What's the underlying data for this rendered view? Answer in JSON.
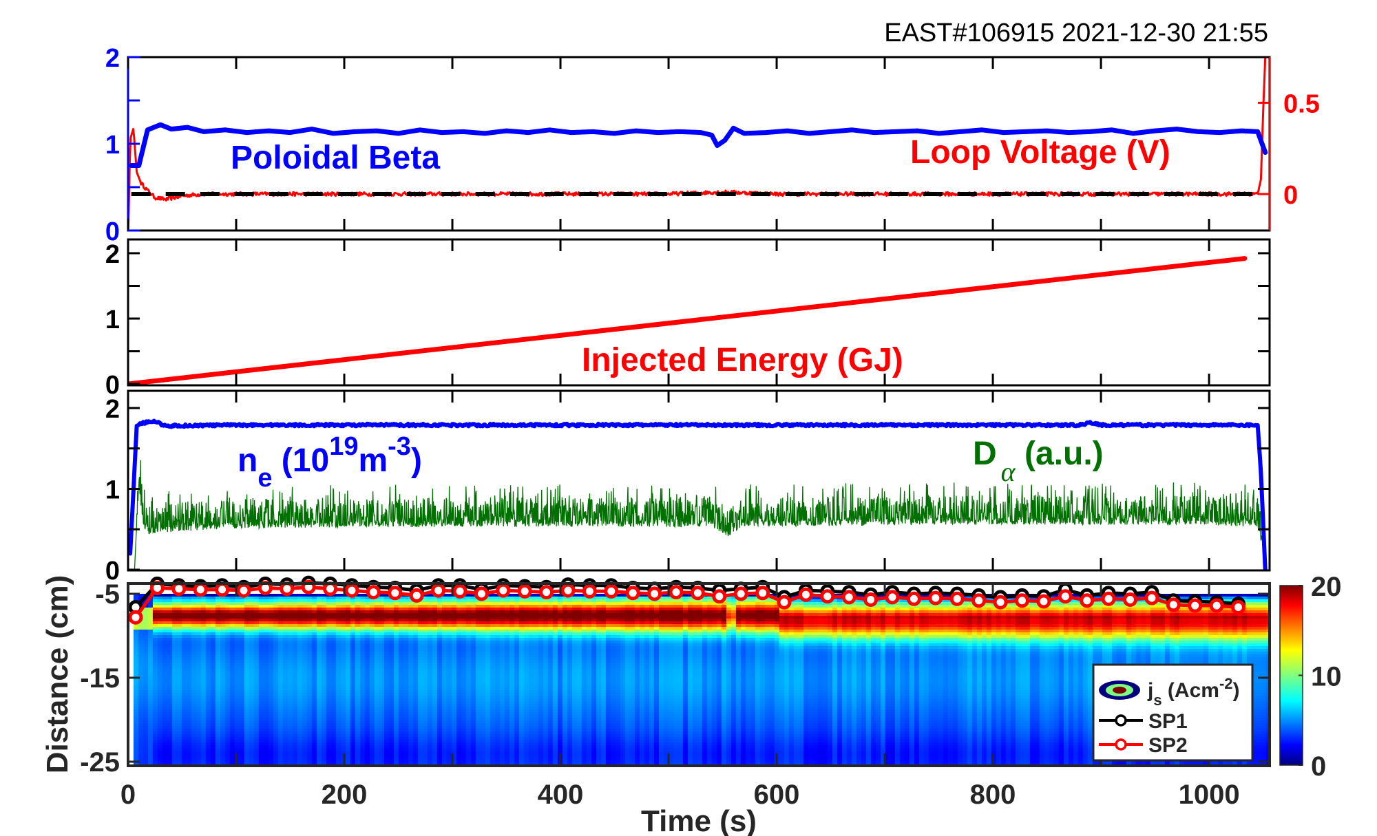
{
  "header": {
    "title": "EAST#106915 2021-12-30 21:55"
  },
  "colors": {
    "blue": "#0000ff",
    "red": "#ff0000",
    "green": "#007000",
    "black": "#000000",
    "axis": "#262626"
  },
  "chart_data": [
    {
      "type": "line",
      "panel": "poloidal-beta-loop-voltage",
      "xlim": [
        0,
        1056
      ],
      "left_axis": {
        "ylim": [
          0,
          2
        ],
        "ticks": [
          "0",
          "1",
          "2"
        ],
        "color": "#0000ff"
      },
      "right_axis": {
        "ylim": [
          -0.2,
          0.75
        ],
        "ticks": [
          "0",
          "0.5"
        ],
        "color": "#ff0000"
      },
      "annotations": {
        "left": "Poloidal Beta",
        "right": "Loop Voltage (V)"
      },
      "series": [
        {
          "name": "Poloidal Beta",
          "axis": "left",
          "x": [
            3,
            10,
            18,
            30,
            40,
            55,
            70,
            90,
            110,
            130,
            150,
            170,
            190,
            210,
            230,
            250,
            270,
            290,
            310,
            330,
            350,
            370,
            390,
            410,
            430,
            450,
            470,
            490,
            510,
            530,
            540,
            545,
            552,
            560,
            570,
            590,
            610,
            630,
            650,
            670,
            690,
            710,
            730,
            750,
            770,
            790,
            810,
            830,
            850,
            870,
            890,
            910,
            930,
            950,
            970,
            990,
            1010,
            1030,
            1045,
            1052
          ],
          "y": [
            0.75,
            0.75,
            1.16,
            1.22,
            1.17,
            1.19,
            1.14,
            1.16,
            1.13,
            1.15,
            1.13,
            1.17,
            1.12,
            1.14,
            1.15,
            1.12,
            1.16,
            1.13,
            1.14,
            1.12,
            1.15,
            1.13,
            1.16,
            1.13,
            1.14,
            1.12,
            1.15,
            1.13,
            1.14,
            1.13,
            1.1,
            0.98,
            1.04,
            1.18,
            1.12,
            1.13,
            1.15,
            1.12,
            1.14,
            1.16,
            1.13,
            1.14,
            1.15,
            1.12,
            1.14,
            1.16,
            1.13,
            1.14,
            1.15,
            1.13,
            1.14,
            1.16,
            1.12,
            1.15,
            1.17,
            1.14,
            1.13,
            1.15,
            1.14,
            0.9
          ]
        },
        {
          "name": "Loop Voltage (V)",
          "axis": "right",
          "x": [
            0,
            2,
            5,
            8,
            12,
            18,
            25,
            35,
            50,
            70,
            100,
            200,
            300,
            400,
            500,
            545,
            555,
            600,
            700,
            800,
            900,
            1000,
            1045,
            1048,
            1050,
            1052
          ],
          "y": [
            -0.25,
            0.3,
            0.36,
            0.12,
            0.06,
            0.02,
            -0.02,
            -0.03,
            -0.01,
            0.0,
            0.0,
            0.0,
            0.0,
            0.0,
            0.0,
            0.01,
            0.01,
            0.0,
            0.0,
            0.0,
            0.0,
            0.0,
            0.0,
            0.08,
            0.45,
            0.75
          ]
        },
        {
          "name": "zero reference",
          "axis": "right",
          "style": "dashed",
          "x": [
            3,
            1050
          ],
          "y": [
            0,
            0
          ]
        }
      ]
    },
    {
      "type": "line",
      "panel": "injected-energy",
      "xlim": [
        0,
        1056
      ],
      "ylim": [
        0,
        2.1
      ],
      "ticks": [
        "0",
        "1",
        "2"
      ],
      "annotation": "Injected Energy (GJ)",
      "series": [
        {
          "name": "Injected Energy (GJ)",
          "x": [
            0,
            1033
          ],
          "y": [
            0,
            1.92
          ]
        }
      ]
    },
    {
      "type": "line",
      "panel": "density-dalpha",
      "xlim": [
        0,
        1056
      ],
      "ylim": [
        0,
        2.1
      ],
      "ticks": [
        "0",
        "1",
        "2"
      ],
      "annotations": {
        "ne": {
          "main": "n",
          "sub": "e",
          "open": " (10",
          "sup1": "19",
          "unit": "m",
          "sup2": "-3",
          "close": ")"
        },
        "dalpha": {
          "main": "D",
          "sub": "α",
          "rest": " (a.u.)"
        }
      },
      "series": [
        {
          "name": "ne",
          "x": [
            2,
            8,
            15,
            25,
            35,
            100,
            300,
            500,
            700,
            880,
            890,
            900,
            1000,
            1045,
            1048,
            1052
          ],
          "y": [
            0.2,
            1.78,
            1.82,
            1.83,
            1.78,
            1.79,
            1.79,
            1.79,
            1.79,
            1.79,
            1.82,
            1.79,
            1.79,
            1.79,
            1.2,
            0.0
          ],
          "noise": 0.015
        },
        {
          "name": "D_alpha",
          "x": [
            6,
            10,
            14,
            20,
            30,
            100,
            300,
            540,
            555,
            570,
            800,
            1000,
            1045,
            1052
          ],
          "y": [
            0.0,
            1.15,
            0.6,
            0.52,
            0.55,
            0.6,
            0.62,
            0.62,
            0.5,
            0.62,
            0.65,
            0.64,
            0.62,
            0.2
          ],
          "noise": 0.22
        }
      ]
    },
    {
      "type": "heatmap",
      "panel": "js-profile",
      "xlim": [
        0,
        1056
      ],
      "ylim": [
        -26,
        -3.8
      ],
      "xlabel": "Time (s)",
      "ylabel": "Distance (cm)",
      "xticks": [
        "0",
        "200",
        "400",
        "600",
        "800",
        "1000"
      ],
      "yticks": [
        "-5",
        "-15",
        "-25"
      ],
      "colorbar": {
        "range": [
          0,
          20
        ],
        "ticks": [
          "0",
          "10",
          "20"
        ],
        "colormap": "jet"
      },
      "legend": {
        "position": "bottom-right",
        "entries": [
          {
            "label": "j",
            "sub": "s",
            "rest": " (Acm",
            "sup": "-2",
            "close": ")"
          },
          {
            "label": "SP1"
          },
          {
            "label": "SP2"
          }
        ]
      },
      "heat_extent_t": [
        5,
        1060
      ],
      "peak_position_cm": -7.5,
      "series": [
        {
          "name": "SP1",
          "color": "#000000",
          "x": [
            7,
            27,
            47,
            67,
            87,
            107,
            127,
            147,
            167,
            187,
            207,
            227,
            247,
            267,
            287,
            307,
            327,
            347,
            367,
            387,
            407,
            427,
            447,
            467,
            487,
            507,
            527,
            547,
            567,
            587,
            607,
            627,
            647,
            667,
            687,
            707,
            727,
            747,
            767,
            787,
            807,
            827,
            847,
            867,
            887,
            907,
            927,
            947,
            967,
            987,
            1007,
            1027
          ],
          "y": [
            -6.6,
            -3.8,
            -4.0,
            -4.1,
            -4.0,
            -4.2,
            -3.8,
            -3.9,
            -3.7,
            -3.8,
            -4.0,
            -4.2,
            -4.3,
            -4.6,
            -4.0,
            -4.0,
            -4.5,
            -4.0,
            -4.1,
            -4.2,
            -3.9,
            -4.0,
            -4.0,
            -4.3,
            -4.4,
            -4.2,
            -4.3,
            -4.6,
            -4.4,
            -4.2,
            -5.4,
            -4.6,
            -4.7,
            -4.8,
            -5.1,
            -4.8,
            -5.0,
            -4.9,
            -5.0,
            -5.2,
            -5.4,
            -5.2,
            -5.3,
            -4.5,
            -5.2,
            -4.9,
            -5.0,
            -4.8,
            -5.8,
            -5.9,
            -6.0,
            -6.2
          ]
        },
        {
          "name": "SP2",
          "color": "#ff0000",
          "x": [
            7,
            27,
            47,
            67,
            87,
            107,
            127,
            147,
            167,
            187,
            207,
            227,
            247,
            267,
            287,
            307,
            327,
            347,
            367,
            387,
            407,
            427,
            447,
            467,
            487,
            507,
            527,
            547,
            567,
            587,
            607,
            627,
            647,
            667,
            687,
            707,
            727,
            747,
            767,
            787,
            807,
            827,
            847,
            867,
            887,
            907,
            927,
            947,
            967,
            987,
            1007,
            1027
          ],
          "y": [
            -7.8,
            -4.3,
            -4.4,
            -4.5,
            -4.5,
            -4.6,
            -4.3,
            -4.4,
            -4.2,
            -4.4,
            -4.6,
            -4.8,
            -4.9,
            -5.2,
            -4.6,
            -4.7,
            -5.0,
            -4.6,
            -4.7,
            -4.8,
            -4.6,
            -4.7,
            -4.7,
            -4.9,
            -5.0,
            -4.8,
            -4.9,
            -5.3,
            -5.0,
            -4.9,
            -6.0,
            -5.1,
            -5.3,
            -5.4,
            -5.7,
            -5.4,
            -5.6,
            -5.5,
            -5.6,
            -5.8,
            -6.0,
            -5.8,
            -5.9,
            -5.3,
            -5.8,
            -5.6,
            -5.7,
            -5.5,
            -6.3,
            -6.4,
            -6.4,
            -6.6
          ]
        }
      ]
    }
  ]
}
